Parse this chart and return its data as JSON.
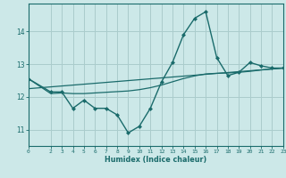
{
  "xlabel": "Humidex (Indice chaleur)",
  "background_color": "#cce8e8",
  "grid_color": "#aacccc",
  "line_color": "#1a6b6b",
  "x_min": 0,
  "x_max": 23,
  "y_min": 10.5,
  "y_max": 14.85,
  "yticks": [
    11,
    12,
    13,
    14
  ],
  "xticks": [
    0,
    2,
    3,
    4,
    5,
    6,
    7,
    8,
    9,
    10,
    11,
    12,
    13,
    14,
    15,
    16,
    17,
    18,
    19,
    20,
    21,
    22,
    23
  ],
  "xtick_labels": [
    "0",
    "2",
    "3",
    "4",
    "5",
    "6",
    "7",
    "8",
    "9",
    "10",
    "11",
    "12",
    "13",
    "14",
    "15",
    "16",
    "17",
    "18",
    "19",
    "20",
    "21",
    "22",
    "23"
  ],
  "humidex_line": {
    "x": [
      0,
      2,
      3,
      4,
      5,
      6,
      7,
      8,
      9,
      10,
      11,
      12,
      13,
      14,
      15,
      16,
      17,
      18,
      19,
      20,
      21,
      22,
      23
    ],
    "y": [
      12.55,
      12.15,
      12.15,
      11.65,
      11.9,
      11.65,
      11.65,
      11.45,
      10.9,
      11.1,
      11.65,
      12.45,
      13.05,
      13.9,
      14.4,
      14.6,
      13.2,
      12.65,
      12.75,
      13.05,
      12.95,
      12.88,
      12.88
    ]
  },
  "trend_line": {
    "x": [
      0,
      23
    ],
    "y": [
      12.25,
      12.88
    ]
  },
  "smooth_line": {
    "x": [
      0,
      2,
      3,
      4,
      5,
      6,
      7,
      8,
      9,
      10,
      11,
      12,
      13,
      14,
      15,
      16,
      17,
      18,
      19,
      20,
      21,
      22,
      23
    ],
    "y": [
      12.55,
      12.1,
      12.12,
      12.1,
      12.1,
      12.12,
      12.14,
      12.16,
      12.18,
      12.22,
      12.28,
      12.36,
      12.46,
      12.56,
      12.64,
      12.7,
      12.72,
      12.73,
      12.75,
      12.78,
      12.82,
      12.85,
      12.88
    ]
  }
}
